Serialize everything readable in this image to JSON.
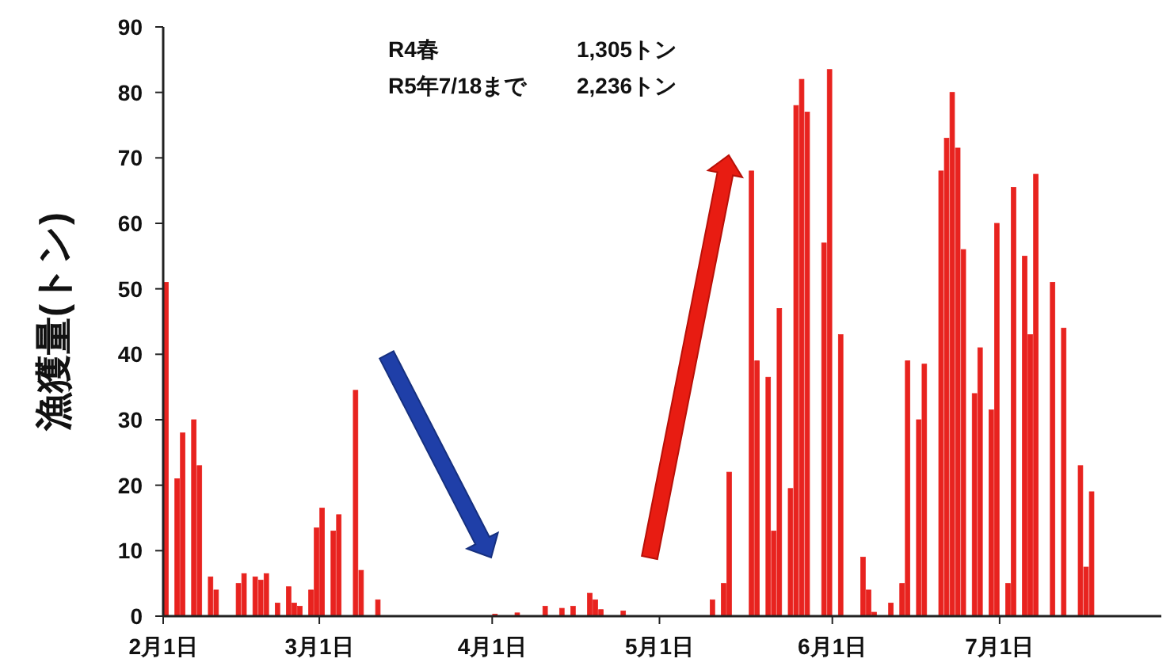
{
  "chart_data": {
    "type": "bar",
    "ylabel": "漁獲量(トン)",
    "annotations": [
      "R4春",
      "1,305トン",
      "R5年7/18まで",
      "2,236トン"
    ],
    "x": [
      "--02-01",
      "--02-03",
      "--02-04",
      "--02-06",
      "--02-07",
      "--02-09",
      "--02-10",
      "--02-14",
      "--02-15",
      "--02-17",
      "--02-18",
      "--02-19",
      "--02-21",
      "--02-23",
      "--02-24",
      "--02-25",
      "--02-27",
      "--02-28",
      "--03-01",
      "--03-03",
      "--03-04",
      "--03-07",
      "--03-08",
      "--03-11",
      "--04-01",
      "--04-05",
      "--04-10",
      "--04-13",
      "--04-15",
      "--04-18",
      "--04-19",
      "--04-20",
      "--04-24",
      "--05-10",
      "--05-12",
      "--05-13",
      "--05-17",
      "--05-18",
      "--05-20",
      "--05-21",
      "--05-22",
      "--05-24",
      "--05-25",
      "--05-26",
      "--05-27",
      "--05-30",
      "--05-31",
      "--06-02",
      "--06-06",
      "--06-07",
      "--06-08",
      "--06-11",
      "--06-13",
      "--06-14",
      "--06-16",
      "--06-17",
      "--06-20",
      "--06-21",
      "--06-22",
      "--06-23",
      "--06-24",
      "--06-26",
      "--06-27",
      "--06-29",
      "--06-30",
      "--07-02",
      "--07-03",
      "--07-05",
      "--07-06",
      "--07-07",
      "--07-10",
      "--07-12",
      "--07-15",
      "--07-16",
      "--07-17"
    ],
    "values": [
      51,
      21,
      28,
      30,
      23,
      6,
      4,
      5,
      6.5,
      6,
      5.5,
      6.5,
      2,
      4.5,
      2,
      1.5,
      4,
      13.5,
      16.5,
      13,
      15.5,
      34.5,
      7,
      2.5,
      0.3,
      0.5,
      1.5,
      1.2,
      1.5,
      3.5,
      2.5,
      1,
      0.8,
      2.5,
      5,
      22,
      68,
      39,
      36.5,
      13,
      47,
      19.5,
      78,
      82,
      77,
      57,
      83.5,
      43,
      9,
      4,
      0.6,
      2,
      5,
      39,
      30,
      38.5,
      68,
      73,
      80,
      71.5,
      56,
      34,
      41,
      31.5,
      60,
      5,
      65.5,
      55,
      43,
      67.5,
      51,
      44,
      23,
      7.5,
      19
    ],
    "color": "#e8231f",
    "xlim": [
      "--02-01",
      "--07-30"
    ],
    "xticks": [
      {
        "value": "--02-01",
        "label": "2月1日"
      },
      {
        "value": "--03-01",
        "label": "3月1日"
      },
      {
        "value": "--04-01",
        "label": "4月1日"
      },
      {
        "value": "--05-01",
        "label": "5月1日"
      },
      {
        "value": "--06-01",
        "label": "6月1日"
      },
      {
        "value": "--07-01",
        "label": "7月1日"
      }
    ],
    "ylim": [
      0,
      90
    ],
    "yticks": [
      0,
      10,
      20,
      30,
      40,
      50,
      60,
      70,
      80,
      90
    ],
    "grid": false
  }
}
